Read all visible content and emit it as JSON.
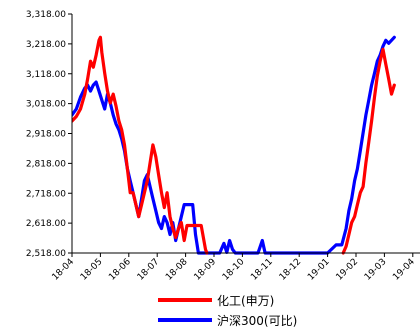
{
  "chart_data": {
    "type": "line",
    "x_unit": "month",
    "categories": [
      "18-04",
      "18-05",
      "18-06",
      "18-07",
      "18-08",
      "18-09",
      "18-10",
      "18-11",
      "18-12",
      "19-01",
      "19-02",
      "19-03",
      "19-04"
    ],
    "ylim": [
      2518,
      3318
    ],
    "y_ticks": [
      "2,518.00",
      "2,618.00",
      "2,718.00",
      "2,818.00",
      "2,918.00",
      "3,018.00",
      "3,118.00",
      "3,218.00",
      "3,318.00"
    ],
    "y_tick_values": [
      2518,
      2618,
      2718,
      2818,
      2918,
      3018,
      3118,
      3218,
      3318
    ],
    "grid": false,
    "legend_position": "bottom",
    "series": [
      {
        "name": "化工(申万)",
        "color": "#ff0000",
        "points": [
          [
            0.0,
            2960
          ],
          [
            0.15,
            2975
          ],
          [
            0.3,
            3000
          ],
          [
            0.45,
            3050
          ],
          [
            0.55,
            3100
          ],
          [
            0.65,
            3160
          ],
          [
            0.75,
            3140
          ],
          [
            0.85,
            3180
          ],
          [
            0.95,
            3230
          ],
          [
            1.0,
            3240
          ],
          [
            1.05,
            3190
          ],
          [
            1.15,
            3120
          ],
          [
            1.25,
            3060
          ],
          [
            1.35,
            3020
          ],
          [
            1.45,
            3050
          ],
          [
            1.55,
            3010
          ],
          [
            1.65,
            2960
          ],
          [
            1.75,
            2930
          ],
          [
            1.85,
            2880
          ],
          [
            1.95,
            2800
          ],
          [
            2.05,
            2720
          ],
          [
            2.15,
            2720
          ],
          [
            2.25,
            2680
          ],
          [
            2.35,
            2640
          ],
          [
            2.45,
            2680
          ],
          [
            2.55,
            2720
          ],
          [
            2.65,
            2760
          ],
          [
            2.75,
            2820
          ],
          [
            2.85,
            2880
          ],
          [
            2.95,
            2840
          ],
          [
            3.05,
            2780
          ],
          [
            3.15,
            2720
          ],
          [
            3.25,
            2670
          ],
          [
            3.35,
            2720
          ],
          [
            3.45,
            2640
          ],
          [
            3.55,
            2600
          ],
          [
            3.65,
            2570
          ],
          [
            3.75,
            2600
          ],
          [
            3.85,
            2620
          ],
          [
            3.95,
            2560
          ],
          [
            4.05,
            2610
          ],
          [
            4.15,
            2610
          ],
          [
            4.25,
            2610
          ],
          [
            4.35,
            2610
          ],
          [
            4.45,
            2610
          ],
          [
            4.55,
            2610
          ],
          [
            4.7,
            2530
          ],
          [
            4.75,
            2518
          ]
        ],
        "points_late": [
          [
            9.55,
            2518
          ],
          [
            9.65,
            2540
          ],
          [
            9.75,
            2580
          ],
          [
            9.85,
            2620
          ],
          [
            9.95,
            2640
          ],
          [
            10.05,
            2680
          ],
          [
            10.15,
            2720
          ],
          [
            10.25,
            2740
          ],
          [
            10.35,
            2820
          ],
          [
            10.45,
            2890
          ],
          [
            10.55,
            2960
          ],
          [
            10.65,
            3040
          ],
          [
            10.75,
            3110
          ],
          [
            10.85,
            3160
          ],
          [
            10.95,
            3200
          ],
          [
            11.05,
            3150
          ],
          [
            11.15,
            3100
          ],
          [
            11.25,
            3050
          ],
          [
            11.35,
            3080
          ]
        ]
      },
      {
        "name": "沪深300(可比)",
        "color": "#0000ff",
        "points": [
          [
            0.0,
            2980
          ],
          [
            0.15,
            3000
          ],
          [
            0.3,
            3040
          ],
          [
            0.45,
            3070
          ],
          [
            0.55,
            3080
          ],
          [
            0.65,
            3060
          ],
          [
            0.75,
            3080
          ],
          [
            0.85,
            3090
          ],
          [
            0.95,
            3060
          ],
          [
            1.05,
            3030
          ],
          [
            1.15,
            3000
          ],
          [
            1.25,
            3050
          ],
          [
            1.35,
            3020
          ],
          [
            1.45,
            2980
          ],
          [
            1.55,
            2950
          ],
          [
            1.65,
            2930
          ],
          [
            1.75,
            2900
          ],
          [
            1.85,
            2860
          ],
          [
            1.95,
            2800
          ],
          [
            2.05,
            2760
          ],
          [
            2.15,
            2720
          ],
          [
            2.25,
            2680
          ],
          [
            2.35,
            2640
          ],
          [
            2.45,
            2700
          ],
          [
            2.55,
            2760
          ],
          [
            2.65,
            2780
          ],
          [
            2.75,
            2740
          ],
          [
            2.85,
            2700
          ],
          [
            2.95,
            2660
          ],
          [
            3.05,
            2620
          ],
          [
            3.15,
            2600
          ],
          [
            3.25,
            2640
          ],
          [
            3.35,
            2620
          ],
          [
            3.45,
            2580
          ],
          [
            3.55,
            2620
          ],
          [
            3.65,
            2560
          ],
          [
            3.75,
            2600
          ],
          [
            3.85,
            2640
          ],
          [
            3.95,
            2680
          ],
          [
            4.05,
            2680
          ],
          [
            4.15,
            2680
          ],
          [
            4.25,
            2680
          ],
          [
            4.35,
            2580
          ],
          [
            4.45,
            2518
          ],
          [
            4.6,
            2518
          ],
          [
            4.75,
            2518
          ],
          [
            4.9,
            2518
          ],
          [
            5.05,
            2518
          ],
          [
            5.2,
            2518
          ],
          [
            5.35,
            2550
          ],
          [
            5.45,
            2520
          ],
          [
            5.55,
            2560
          ],
          [
            5.65,
            2530
          ],
          [
            5.75,
            2518
          ],
          [
            6.0,
            2518
          ],
          [
            6.2,
            2518
          ],
          [
            6.4,
            2518
          ],
          [
            6.55,
            2518
          ],
          [
            6.7,
            2560
          ],
          [
            6.8,
            2518
          ],
          [
            6.95,
            2518
          ],
          [
            7.1,
            2518
          ],
          [
            7.3,
            2518
          ],
          [
            7.6,
            2518
          ],
          [
            8.0,
            2518
          ],
          [
            8.5,
            2518
          ],
          [
            9.0,
            2518
          ],
          [
            9.3,
            2545
          ],
          [
            9.5,
            2545
          ],
          [
            9.65,
            2600
          ],
          [
            9.75,
            2660
          ],
          [
            9.85,
            2700
          ],
          [
            9.95,
            2760
          ],
          [
            10.05,
            2800
          ],
          [
            10.15,
            2860
          ],
          [
            10.25,
            2920
          ],
          [
            10.35,
            2980
          ],
          [
            10.45,
            3030
          ],
          [
            10.55,
            3080
          ],
          [
            10.65,
            3120
          ],
          [
            10.75,
            3160
          ],
          [
            10.85,
            3180
          ],
          [
            10.95,
            3210
          ],
          [
            11.05,
            3230
          ],
          [
            11.15,
            3220
          ],
          [
            11.25,
            3230
          ],
          [
            11.35,
            3240
          ]
        ]
      }
    ]
  }
}
